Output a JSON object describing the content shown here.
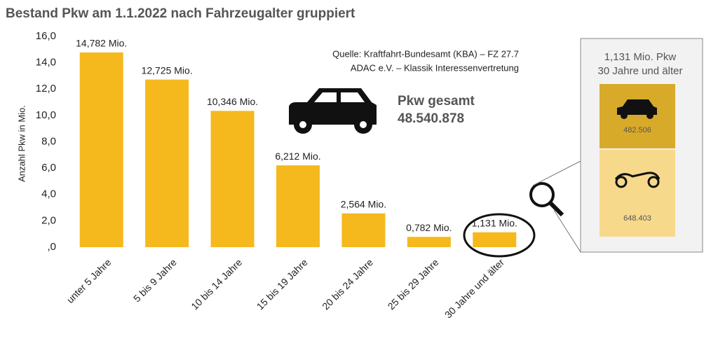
{
  "chart_data": {
    "type": "bar",
    "title": "Bestand Pkw am 1.1.2022 nach Fahrzeugalter gruppiert",
    "y_label": "Anzahl Pkw in Mio.",
    "categories": [
      "unter 5 Jahre",
      "5 bis 9 Jahre",
      "10 bis 14 Jahre",
      "15 bis 19 Jahre",
      "20 bis 24 Jahre",
      "25 bis 29 Jahre",
      "30 Jahre und älter"
    ],
    "values": [
      14.782,
      12.725,
      10.346,
      6.212,
      2.564,
      0.782,
      1.131
    ],
    "value_labels": [
      "14,782 Mio.",
      "12,725 Mio.",
      "10,346 Mio.",
      "6,212 Mio.",
      "2,564 Mio.",
      "0,782 Mio.",
      "1,131 Mio."
    ],
    "color": "#f5b91e",
    "ylim": [
      0,
      16
    ],
    "yticks": [
      {
        "value": 0,
        "label": ",0"
      },
      {
        "value": 2,
        "label": "2,0"
      },
      {
        "value": 4,
        "label": "4,0"
      },
      {
        "value": 6,
        "label": "6,0"
      },
      {
        "value": 8,
        "label": "8,0"
      },
      {
        "value": 10,
        "label": "10,0"
      },
      {
        "value": 12,
        "label": "12,0"
      },
      {
        "value": 14,
        "label": "14,0"
      },
      {
        "value": 16,
        "label": "16,0"
      }
    ],
    "source": [
      "Quelle: Kraftfahrt-Bundesamt (KBA) – FZ 27.7",
      "ADAC e.V. – Klassik Interessenvertretung"
    ],
    "total_label": "Pkw gesamt",
    "total_value": "48.540.878",
    "inset": {
      "title": "1,131 Mio. Pkw",
      "subtitle": "30 Jahre und älter",
      "values": [
        482506,
        648403
      ],
      "value_labels": [
        "482.506",
        "648.403"
      ],
      "colors": [
        "#d8aa2a",
        "#f7d98c"
      ]
    }
  }
}
